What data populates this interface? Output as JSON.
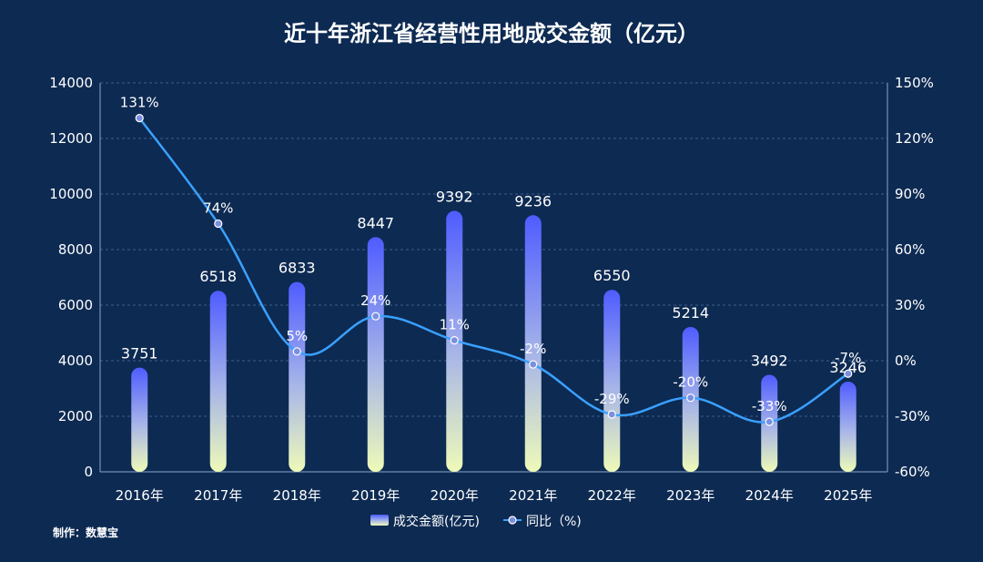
{
  "chart_data": {
    "type": "bar",
    "title": "近十年浙江省经营性用地成交金额（亿元）",
    "categories": [
      "2016年",
      "2017年",
      "2018年",
      "2019年",
      "2020年",
      "2021年",
      "2022年",
      "2023年",
      "2024年",
      "2025年"
    ],
    "series": [
      {
        "name": "成交金额(亿元)",
        "type": "bar",
        "axis": "left",
        "values": [
          3751,
          6518,
          6833,
          8447,
          9392,
          9236,
          6550,
          5214,
          3492,
          3246
        ],
        "labels": [
          "3751",
          "6518",
          "6833",
          "8447",
          "9392",
          "9236",
          "6550",
          "5214",
          "3492",
          "3246"
        ]
      },
      {
        "name": "同比（%)",
        "type": "line",
        "axis": "right",
        "values": [
          131,
          74,
          5,
          24,
          11,
          -2,
          -29,
          -20,
          -33,
          -7
        ],
        "labels": [
          "131%",
          "74%",
          "5%",
          "24%",
          "11%",
          "-2%",
          "-29%",
          "-20%",
          "-33%",
          "-7%"
        ]
      }
    ],
    "y_left": {
      "min": 0,
      "max": 14000,
      "ticks": [
        "0",
        "2000",
        "4000",
        "6000",
        "8000",
        "10000",
        "12000",
        "14000"
      ]
    },
    "y_right": {
      "min": -60,
      "max": 150,
      "ticks": [
        "-60%",
        "-30%",
        "0%",
        "30%",
        "60%",
        "90%",
        "120%",
        "150%"
      ]
    },
    "grid": true,
    "legend": "bottom-center"
  },
  "footer": {
    "credit": "制作：数慧宝"
  },
  "colors": {
    "background": "#0d2a52",
    "bar_top": "#4f5cff",
    "bar_bottom": "#eefab8",
    "line": "#3aa0ff",
    "marker": "#7b8fe0",
    "grid": "#3d5f8a"
  }
}
